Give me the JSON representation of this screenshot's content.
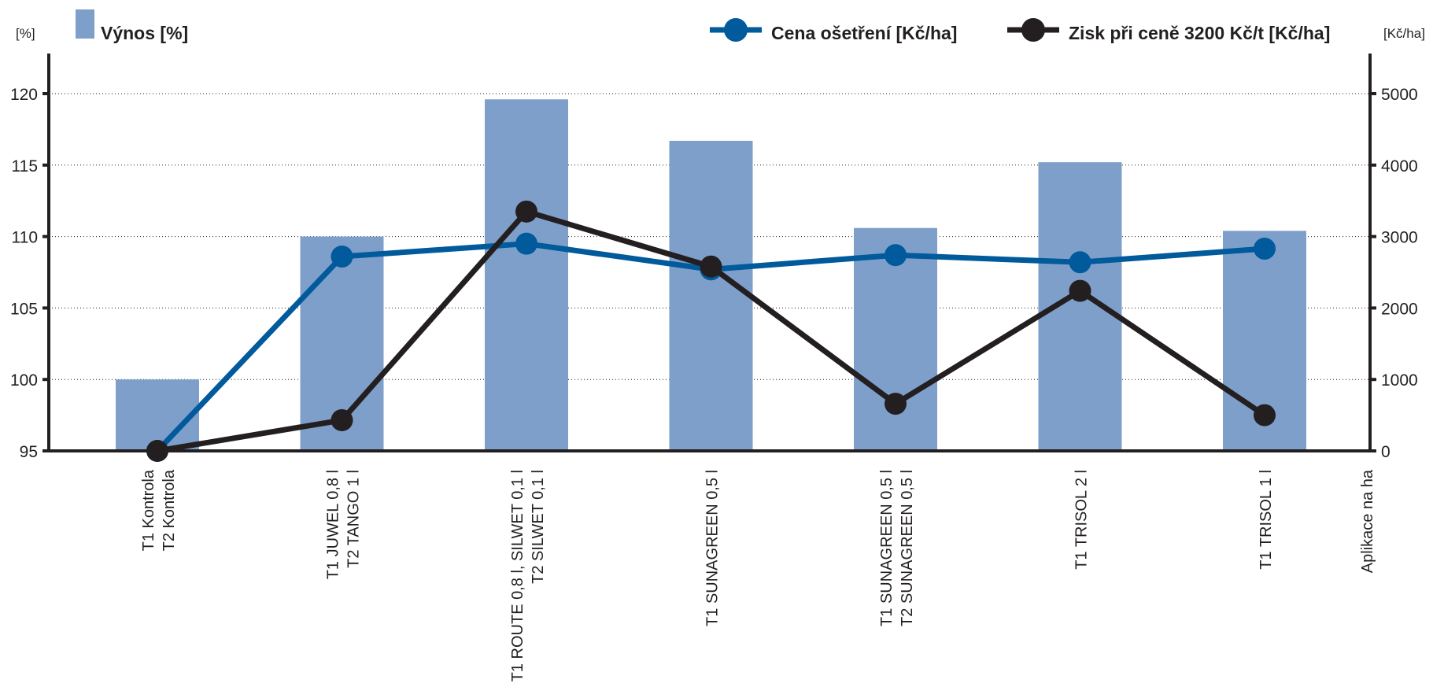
{
  "chart_data": {
    "type": "bar",
    "categories": [
      [
        "T1 Kontrola",
        "T2 Kontrola"
      ],
      [
        "T1 JUWEL 0,8 l",
        "T2 TANGO 1 l"
      ],
      [
        "T1 ROUTE 0,8 l, SILWET 0,1 l",
        "T2 SILWET 0,1 l"
      ],
      [
        "T1 SUNAGREEN 0,5 l"
      ],
      [
        "T1 SUNAGREEN 0,5 l",
        "T2 SUNAGREEN 0,5 l"
      ],
      [
        "T1 TRISOL 2 l"
      ],
      [
        "T1 TRISOL 1 l"
      ]
    ],
    "x_axis_end_label": "Aplikace na ha",
    "left_axis": {
      "unit": "[%]",
      "ylim": [
        95,
        120
      ],
      "ticks": [
        95,
        100,
        105,
        110,
        115,
        120
      ]
    },
    "right_axis": {
      "unit": "[Kč/ha]",
      "ylim": [
        0,
        5000
      ],
      "ticks": [
        0,
        1000,
        2000,
        3000,
        4000,
        5000
      ]
    },
    "grid": true,
    "legend_position": "top",
    "series": [
      {
        "name": "Výnos [%]",
        "type": "bar",
        "axis": "left",
        "color": "#7f9fcb",
        "values": [
          100,
          110,
          119.6,
          116.7,
          110.6,
          115.2,
          110.4
        ]
      },
      {
        "name": "Cena ošetření [Kč/ha]",
        "type": "line",
        "axis": "right",
        "color": "#005a9c",
        "values": [
          0,
          2720,
          2900,
          2540,
          2740,
          2640,
          2830
        ]
      },
      {
        "name": "Zisk při ceně 3200 Kč/t [Kč/ha]",
        "type": "line",
        "axis": "right",
        "color": "#231f20",
        "values": [
          0,
          430,
          3350,
          2580,
          660,
          2240,
          500
        ]
      }
    ]
  }
}
